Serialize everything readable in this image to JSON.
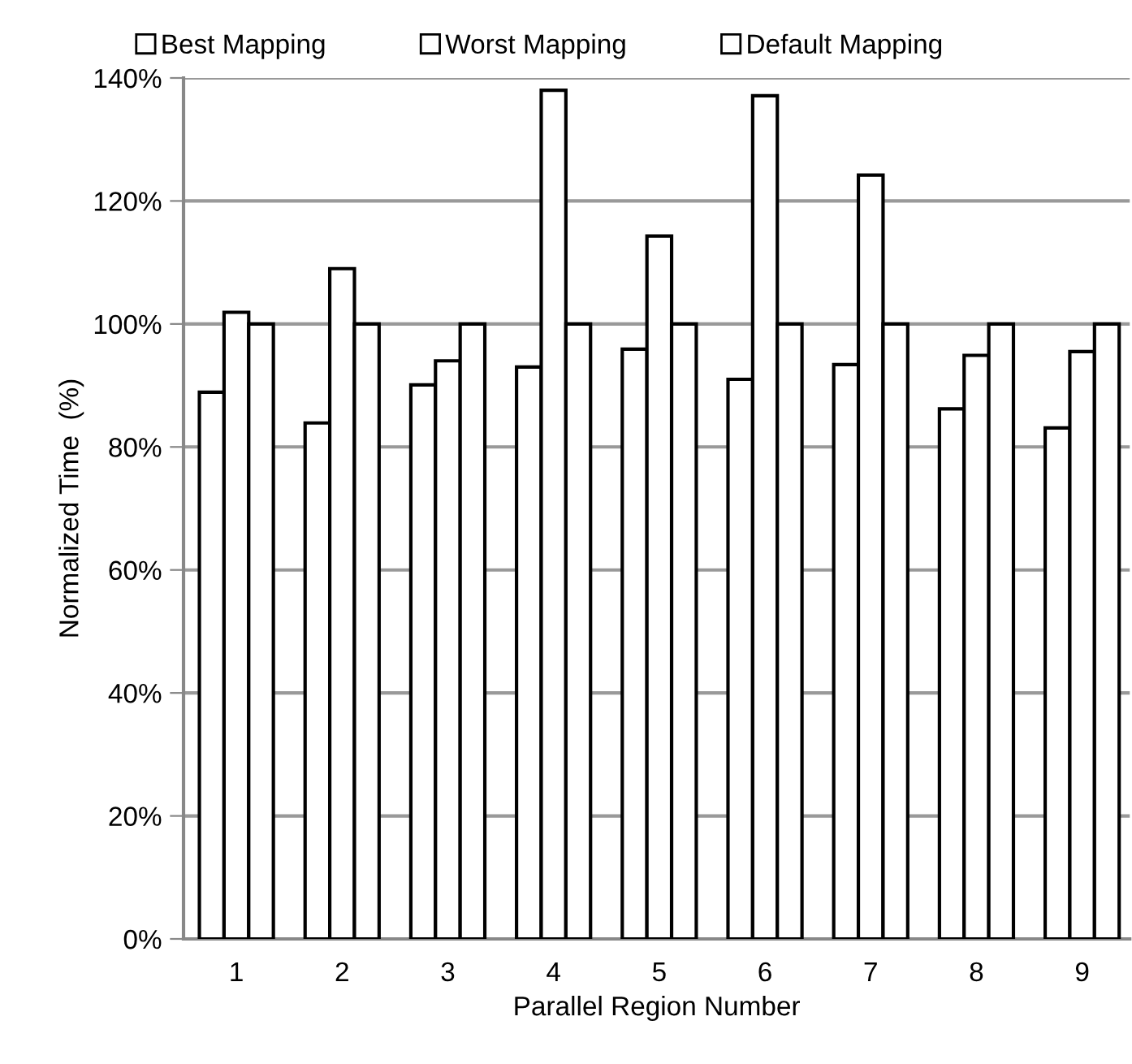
{
  "chart_data": {
    "type": "bar",
    "xlabel": "Parallel Region Number",
    "ylabel": "Normalized Time  (%)",
    "categories": [
      "1",
      "2",
      "3",
      "4",
      "5",
      "6",
      "7",
      "8",
      "9"
    ],
    "series": [
      {
        "name": "Best Mapping",
        "color": "#ffffff",
        "values": [
          88.9,
          83.9,
          90.1,
          93.0,
          95.9,
          91.0,
          93.4,
          86.2,
          83.1
        ]
      },
      {
        "name": "Worst Mapping",
        "color": "#ffffff",
        "values": [
          101.9,
          109.0,
          94.0,
          138.0,
          114.3,
          137.1,
          124.2,
          94.9,
          95.5
        ]
      },
      {
        "name": "Default Mapping",
        "color": "#ffffff",
        "values": [
          100,
          100,
          100,
          100,
          100,
          100,
          100,
          100,
          100
        ]
      }
    ],
    "ylim": [
      0,
      140
    ],
    "yticks": [
      {
        "value": 0,
        "label": "0%"
      },
      {
        "value": 20,
        "label": "20%"
      },
      {
        "value": 40,
        "label": "40%"
      },
      {
        "value": 60,
        "label": "60%"
      },
      {
        "value": 80,
        "label": "80%"
      },
      {
        "value": 100,
        "label": "100%"
      },
      {
        "value": 120,
        "label": "120%"
      },
      {
        "value": 140,
        "label": "140%"
      }
    ],
    "grid": "y",
    "legend": "top"
  }
}
